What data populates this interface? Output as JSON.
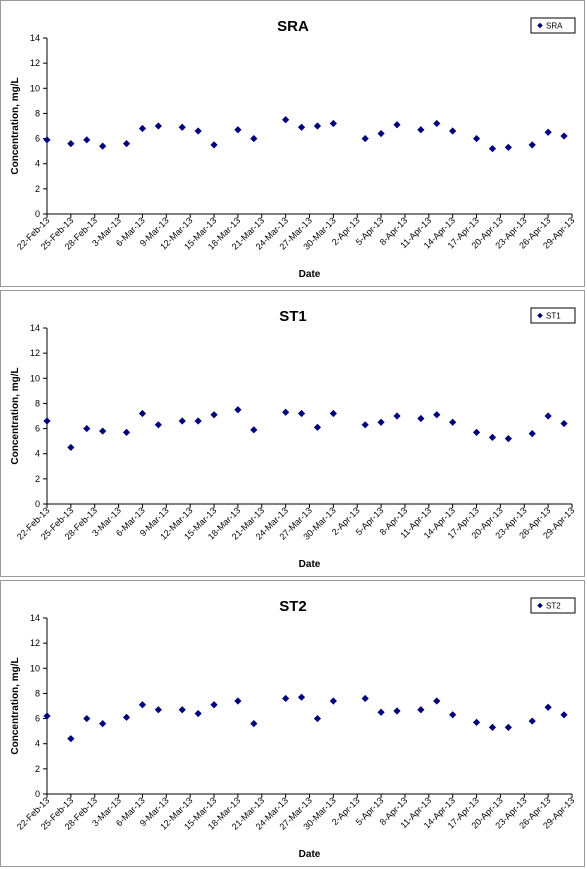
{
  "chart_data": [
    {
      "type": "scatter",
      "title": "SRA",
      "xlabel": "Date",
      "ylabel": "Concentration, mg/L",
      "ylim": [
        0,
        14
      ],
      "yticks": [
        "0",
        "2",
        "4",
        "6",
        "8",
        "10",
        "12",
        "14"
      ],
      "grid": false,
      "legend_position": "top-right",
      "marker_color": "#000080",
      "xticks": [
        "22-Feb-13",
        "25-Feb-13",
        "28-Feb-13",
        "3-Mar-13",
        "6-Mar-13",
        "9-Mar-13",
        "12-Mar-13",
        "15-Mar-13",
        "18-Mar-13",
        "21-Mar-13",
        "24-Mar-13",
        "27-Mar-13",
        "30-Mar-13",
        "2-Apr-13",
        "5-Apr-13",
        "8-Apr-13",
        "11-Apr-13",
        "14-Apr-13",
        "17-Apr-13",
        "20-Apr-13",
        "23-Apr-13",
        "26-Apr-13",
        "29-Apr-13"
      ],
      "series": [
        {
          "name": "SRA",
          "points": [
            {
              "x": "2013-02-22",
              "y": 5.9
            },
            {
              "x": "2013-02-25",
              "y": 5.6
            },
            {
              "x": "2013-02-27",
              "y": 5.9
            },
            {
              "x": "2013-03-01",
              "y": 5.4
            },
            {
              "x": "2013-03-04",
              "y": 5.6
            },
            {
              "x": "2013-03-06",
              "y": 6.8
            },
            {
              "x": "2013-03-08",
              "y": 7.0
            },
            {
              "x": "2013-03-11",
              "y": 6.9
            },
            {
              "x": "2013-03-13",
              "y": 6.6
            },
            {
              "x": "2013-03-15",
              "y": 5.5
            },
            {
              "x": "2013-03-18",
              "y": 6.7
            },
            {
              "x": "2013-03-20",
              "y": 6.0
            },
            {
              "x": "2013-03-24",
              "y": 7.5
            },
            {
              "x": "2013-03-26",
              "y": 6.9
            },
            {
              "x": "2013-03-28",
              "y": 7.0
            },
            {
              "x": "2013-03-30",
              "y": 7.2
            },
            {
              "x": "2013-04-03",
              "y": 6.0
            },
            {
              "x": "2013-04-05",
              "y": 6.4
            },
            {
              "x": "2013-04-07",
              "y": 7.1
            },
            {
              "x": "2013-04-10",
              "y": 6.7
            },
            {
              "x": "2013-04-12",
              "y": 7.2
            },
            {
              "x": "2013-04-14",
              "y": 6.6
            },
            {
              "x": "2013-04-17",
              "y": 6.0
            },
            {
              "x": "2013-04-19",
              "y": 5.2
            },
            {
              "x": "2013-04-21",
              "y": 5.3
            },
            {
              "x": "2013-04-24",
              "y": 5.5
            },
            {
              "x": "2013-04-26",
              "y": 6.5
            },
            {
              "x": "2013-04-28",
              "y": 6.2
            },
            {
              "x": "2013-05-01",
              "y": 6.2
            }
          ]
        }
      ]
    },
    {
      "type": "scatter",
      "title": "ST1",
      "xlabel": "Date",
      "ylabel": "Concentration, mg/L",
      "ylim": [
        0,
        14
      ],
      "yticks": [
        "0",
        "2",
        "4",
        "6",
        "8",
        "10",
        "12",
        "14"
      ],
      "grid": false,
      "legend_position": "top-right",
      "marker_color": "#000080",
      "xticks": [
        "22-Feb-13",
        "25-Feb-13",
        "28-Feb-13",
        "3-Mar-13",
        "6-Mar-13",
        "9-Mar-13",
        "12-Mar-13",
        "15-Mar-13",
        "18-Mar-13",
        "21-Mar-13",
        "24-Mar-13",
        "27-Mar-13",
        "30-Mar-13",
        "2-Apr-13",
        "5-Apr-13",
        "8-Apr-13",
        "11-Apr-13",
        "14-Apr-13",
        "17-Apr-13",
        "20-Apr-13",
        "23-Apr-13",
        "26-Apr-13",
        "29-Apr-13"
      ],
      "series": [
        {
          "name": "ST1",
          "points": [
            {
              "x": "2013-02-22",
              "y": 6.6
            },
            {
              "x": "2013-02-25",
              "y": 4.5
            },
            {
              "x": "2013-02-27",
              "y": 6.0
            },
            {
              "x": "2013-03-01",
              "y": 5.8
            },
            {
              "x": "2013-03-04",
              "y": 5.7
            },
            {
              "x": "2013-03-06",
              "y": 7.2
            },
            {
              "x": "2013-03-08",
              "y": 6.3
            },
            {
              "x": "2013-03-11",
              "y": 6.6
            },
            {
              "x": "2013-03-13",
              "y": 6.6
            },
            {
              "x": "2013-03-15",
              "y": 7.1
            },
            {
              "x": "2013-03-18",
              "y": 7.5
            },
            {
              "x": "2013-03-20",
              "y": 5.9
            },
            {
              "x": "2013-03-24",
              "y": 7.3
            },
            {
              "x": "2013-03-26",
              "y": 7.2
            },
            {
              "x": "2013-03-28",
              "y": 6.1
            },
            {
              "x": "2013-03-30",
              "y": 7.2
            },
            {
              "x": "2013-04-03",
              "y": 6.3
            },
            {
              "x": "2013-04-05",
              "y": 6.5
            },
            {
              "x": "2013-04-07",
              "y": 7.0
            },
            {
              "x": "2013-04-10",
              "y": 6.8
            },
            {
              "x": "2013-04-12",
              "y": 7.1
            },
            {
              "x": "2013-04-14",
              "y": 6.5
            },
            {
              "x": "2013-04-17",
              "y": 5.7
            },
            {
              "x": "2013-04-19",
              "y": 5.3
            },
            {
              "x": "2013-04-21",
              "y": 5.2
            },
            {
              "x": "2013-04-24",
              "y": 5.6
            },
            {
              "x": "2013-04-26",
              "y": 7.0
            },
            {
              "x": "2013-04-28",
              "y": 6.4
            },
            {
              "x": "2013-05-01",
              "y": 6.2
            }
          ]
        }
      ]
    },
    {
      "type": "scatter",
      "title": "ST2",
      "xlabel": "Date",
      "ylabel": "Concentration, mg/L",
      "ylim": [
        0,
        14
      ],
      "yticks": [
        "0",
        "2",
        "4",
        "6",
        "8",
        "10",
        "12",
        "14"
      ],
      "grid": false,
      "legend_position": "top-right",
      "marker_color": "#000080",
      "xticks": [
        "22-Feb-13",
        "25-Feb-13",
        "28-Feb-13",
        "3-Mar-13",
        "6-Mar-13",
        "9-Mar-13",
        "12-Mar-13",
        "15-Mar-13",
        "18-Mar-13",
        "21-Mar-13",
        "24-Mar-13",
        "27-Mar-13",
        "30-Mar-13",
        "2-Apr-13",
        "5-Apr-13",
        "8-Apr-13",
        "11-Apr-13",
        "14-Apr-13",
        "17-Apr-13",
        "20-Apr-13",
        "23-Apr-13",
        "26-Apr-13",
        "29-Apr-13"
      ],
      "series": [
        {
          "name": "ST2",
          "points": [
            {
              "x": "2013-02-22",
              "y": 6.2
            },
            {
              "x": "2013-02-25",
              "y": 4.4
            },
            {
              "x": "2013-02-27",
              "y": 6.0
            },
            {
              "x": "2013-03-01",
              "y": 5.6
            },
            {
              "x": "2013-03-04",
              "y": 6.1
            },
            {
              "x": "2013-03-06",
              "y": 7.1
            },
            {
              "x": "2013-03-08",
              "y": 6.7
            },
            {
              "x": "2013-03-11",
              "y": 6.7
            },
            {
              "x": "2013-03-13",
              "y": 6.4
            },
            {
              "x": "2013-03-15",
              "y": 7.1
            },
            {
              "x": "2013-03-18",
              "y": 7.4
            },
            {
              "x": "2013-03-20",
              "y": 5.6
            },
            {
              "x": "2013-03-24",
              "y": 7.6
            },
            {
              "x": "2013-03-26",
              "y": 7.7
            },
            {
              "x": "2013-03-28",
              "y": 6.0
            },
            {
              "x": "2013-03-30",
              "y": 7.4
            },
            {
              "x": "2013-04-03",
              "y": 7.6
            },
            {
              "x": "2013-04-05",
              "y": 6.5
            },
            {
              "x": "2013-04-07",
              "y": 6.6
            },
            {
              "x": "2013-04-10",
              "y": 6.7
            },
            {
              "x": "2013-04-12",
              "y": 7.4
            },
            {
              "x": "2013-04-14",
              "y": 6.3
            },
            {
              "x": "2013-04-17",
              "y": 5.7
            },
            {
              "x": "2013-04-19",
              "y": 5.3
            },
            {
              "x": "2013-04-21",
              "y": 5.3
            },
            {
              "x": "2013-04-24",
              "y": 5.8
            },
            {
              "x": "2013-04-26",
              "y": 6.9
            },
            {
              "x": "2013-04-28",
              "y": 6.3
            },
            {
              "x": "2013-05-01",
              "y": 6.1
            }
          ]
        }
      ]
    }
  ]
}
